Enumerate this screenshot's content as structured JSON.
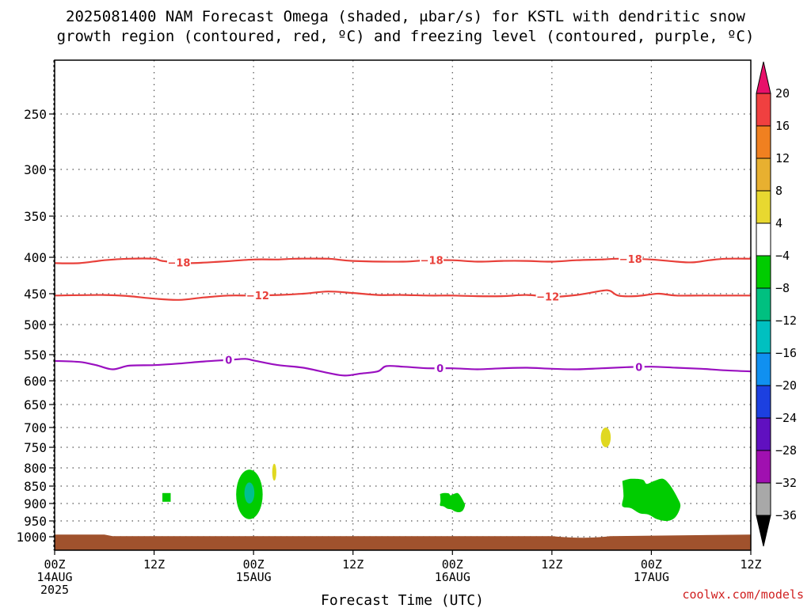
{
  "title_line1": "2025081400 NAM Forecast Omega (shaded, μbar/s) for KSTL with dendritic snow",
  "title_line2": "growth region (contoured, red, ºC) and freezing level (contoured, purple, ºC)",
  "credit": "coolwx.com/models",
  "chart_data": {
    "type": "time-height cross section",
    "xlabel": "Forecast Time (UTC)",
    "ylabel": "",
    "x_range_hours": [
      0,
      84
    ],
    "y_range_hpa": [
      200,
      1030
    ],
    "grid": true,
    "x_ticks": [
      {
        "hour": 0,
        "l1": "00Z",
        "l2": "14AUG",
        "l3": "2025"
      },
      {
        "hour": 12,
        "l1": "12Z",
        "l2": "",
        "l3": ""
      },
      {
        "hour": 24,
        "l1": "00Z",
        "l2": "15AUG",
        "l3": ""
      },
      {
        "hour": 36,
        "l1": "12Z",
        "l2": "",
        "l3": ""
      },
      {
        "hour": 48,
        "l1": "00Z",
        "l2": "16AUG",
        "l3": ""
      },
      {
        "hour": 60,
        "l1": "12Z",
        "l2": "",
        "l3": ""
      },
      {
        "hour": 72,
        "l1": "00Z",
        "l2": "17AUG",
        "l3": ""
      },
      {
        "hour": 84,
        "l1": "12Z",
        "l2": "",
        "l3": ""
      }
    ],
    "y_ticks": [
      250,
      300,
      350,
      400,
      450,
      500,
      550,
      600,
      650,
      700,
      750,
      800,
      850,
      900,
      950,
      1000
    ],
    "contours": [
      {
        "label": "-18",
        "color": "#e8403a",
        "points": [
          [
            0,
            408
          ],
          [
            3,
            408
          ],
          [
            6,
            404
          ],
          [
            9,
            402
          ],
          [
            12,
            402
          ],
          [
            13,
            405
          ],
          [
            16,
            408
          ],
          [
            20,
            406
          ],
          [
            24,
            403
          ],
          [
            27,
            403
          ],
          [
            29,
            402
          ],
          [
            33,
            402
          ],
          [
            36,
            405
          ],
          [
            42,
            406
          ],
          [
            45,
            404
          ],
          [
            48,
            404
          ],
          [
            51,
            406
          ],
          [
            54,
            405
          ],
          [
            57,
            405
          ],
          [
            60,
            406
          ],
          [
            63,
            404
          ],
          [
            66,
            403
          ],
          [
            68,
            402
          ],
          [
            72,
            403
          ],
          [
            75,
            406
          ],
          [
            77,
            407
          ],
          [
            79,
            404
          ],
          [
            81,
            402
          ],
          [
            84,
            402
          ]
        ],
        "label_hours": [
          15,
          45.5,
          69.5
        ]
      },
      {
        "label": "-12",
        "color": "#e8403a",
        "points": [
          [
            0,
            453
          ],
          [
            6,
            452
          ],
          [
            9,
            454
          ],
          [
            12,
            458
          ],
          [
            15,
            460
          ],
          [
            18,
            456
          ],
          [
            21,
            453
          ],
          [
            24,
            453
          ],
          [
            27,
            452
          ],
          [
            30,
            450
          ],
          [
            33,
            447
          ],
          [
            36,
            449
          ],
          [
            39,
            452
          ],
          [
            42,
            452
          ],
          [
            45,
            453
          ],
          [
            48,
            453
          ],
          [
            51,
            454
          ],
          [
            54,
            454
          ],
          [
            57,
            452
          ],
          [
            60,
            455
          ],
          [
            63,
            452
          ],
          [
            66,
            446
          ],
          [
            67,
            446
          ],
          [
            68,
            453
          ],
          [
            70,
            454
          ],
          [
            72,
            451
          ],
          [
            73,
            450
          ],
          [
            75,
            453
          ],
          [
            78,
            453
          ],
          [
            84,
            453
          ]
        ],
        "label_hours": [
          24.5,
          59.5
        ]
      },
      {
        "label": "0",
        "color": "#9a10c0",
        "points": [
          [
            0,
            562
          ],
          [
            3,
            564
          ],
          [
            5,
            570
          ],
          [
            7,
            578
          ],
          [
            9,
            571
          ],
          [
            12,
            570
          ],
          [
            15,
            567
          ],
          [
            18,
            563
          ],
          [
            21,
            560
          ],
          [
            23,
            558
          ],
          [
            24,
            561
          ],
          [
            27,
            570
          ],
          [
            30,
            575
          ],
          [
            33,
            585
          ],
          [
            35,
            590
          ],
          [
            37,
            586
          ],
          [
            39,
            582
          ],
          [
            40,
            572
          ],
          [
            42,
            573
          ],
          [
            45,
            576
          ],
          [
            48,
            576
          ],
          [
            51,
            578
          ],
          [
            54,
            576
          ],
          [
            57,
            575
          ],
          [
            60,
            577
          ],
          [
            63,
            578
          ],
          [
            66,
            576
          ],
          [
            69,
            574
          ],
          [
            72,
            573
          ],
          [
            75,
            575
          ],
          [
            78,
            577
          ],
          [
            81,
            580
          ],
          [
            84,
            582
          ]
        ],
        "label_hours": [
          21,
          46.5,
          70.5
        ]
      }
    ],
    "shaded_regions": [
      {
        "value_range": [
          -8,
          -4
        ],
        "color": "#00cc00",
        "shape": "ellipse",
        "center": [
          23.5,
          870
        ],
        "radius_hours": 1.6,
        "pressure_span": [
          805,
          945
        ]
      },
      {
        "value_range": [
          -12,
          -8
        ],
        "color": "#00c090",
        "shape": "ellipse",
        "center": [
          23.5,
          868
        ],
        "radius_hours": 0.6,
        "pressure_span": [
          840,
          900
        ]
      },
      {
        "value_range": [
          -8,
          -4
        ],
        "color": "#00cc00",
        "shape": "box",
        "hours": [
          13,
          14
        ],
        "pressure_span": [
          870,
          895
        ]
      },
      {
        "value_range": [
          -8,
          -4
        ],
        "color": "#00cc00",
        "shape": "blob",
        "hours": [
          46.5,
          49.5
        ],
        "pressure_span": [
          870,
          925
        ]
      },
      {
        "value_range": [
          -8,
          -4
        ],
        "color": "#00cc00",
        "shape": "blob",
        "hours": [
          68.5,
          75.5
        ],
        "pressure_span": [
          830,
          950
        ]
      },
      {
        "value_range": [
          4,
          8
        ],
        "color": "#e0d820",
        "shape": "ellipse",
        "center": [
          26.5,
          810
        ],
        "radius_hours": 0.25,
        "pressure_span": [
          790,
          835
        ]
      },
      {
        "value_range": [
          4,
          8
        ],
        "color": "#e0d820",
        "shape": "ellipse",
        "center": [
          66.5,
          720
        ],
        "radius_hours": 0.6,
        "pressure_span": [
          700,
          750
        ]
      }
    ],
    "surface": {
      "color": "#a0522d",
      "pressure_top": 993
    },
    "colorbar": {
      "ticks": [
        "20",
        "16",
        "12",
        "8",
        "4",
        "−4",
        "−8",
        "−12",
        "−16",
        "−20",
        "−24",
        "−28",
        "−32",
        "−36"
      ],
      "colors": [
        "#e8106a",
        "#f04040",
        "#f08020",
        "#e8b030",
        "#e8d830",
        "#ffffff",
        "#00cc00",
        "#00c080",
        "#00c0c0",
        "#1090f0",
        "#1c40e0",
        "#6010c0",
        "#a010b0",
        "#a8a8a8",
        "#000000"
      ]
    }
  }
}
